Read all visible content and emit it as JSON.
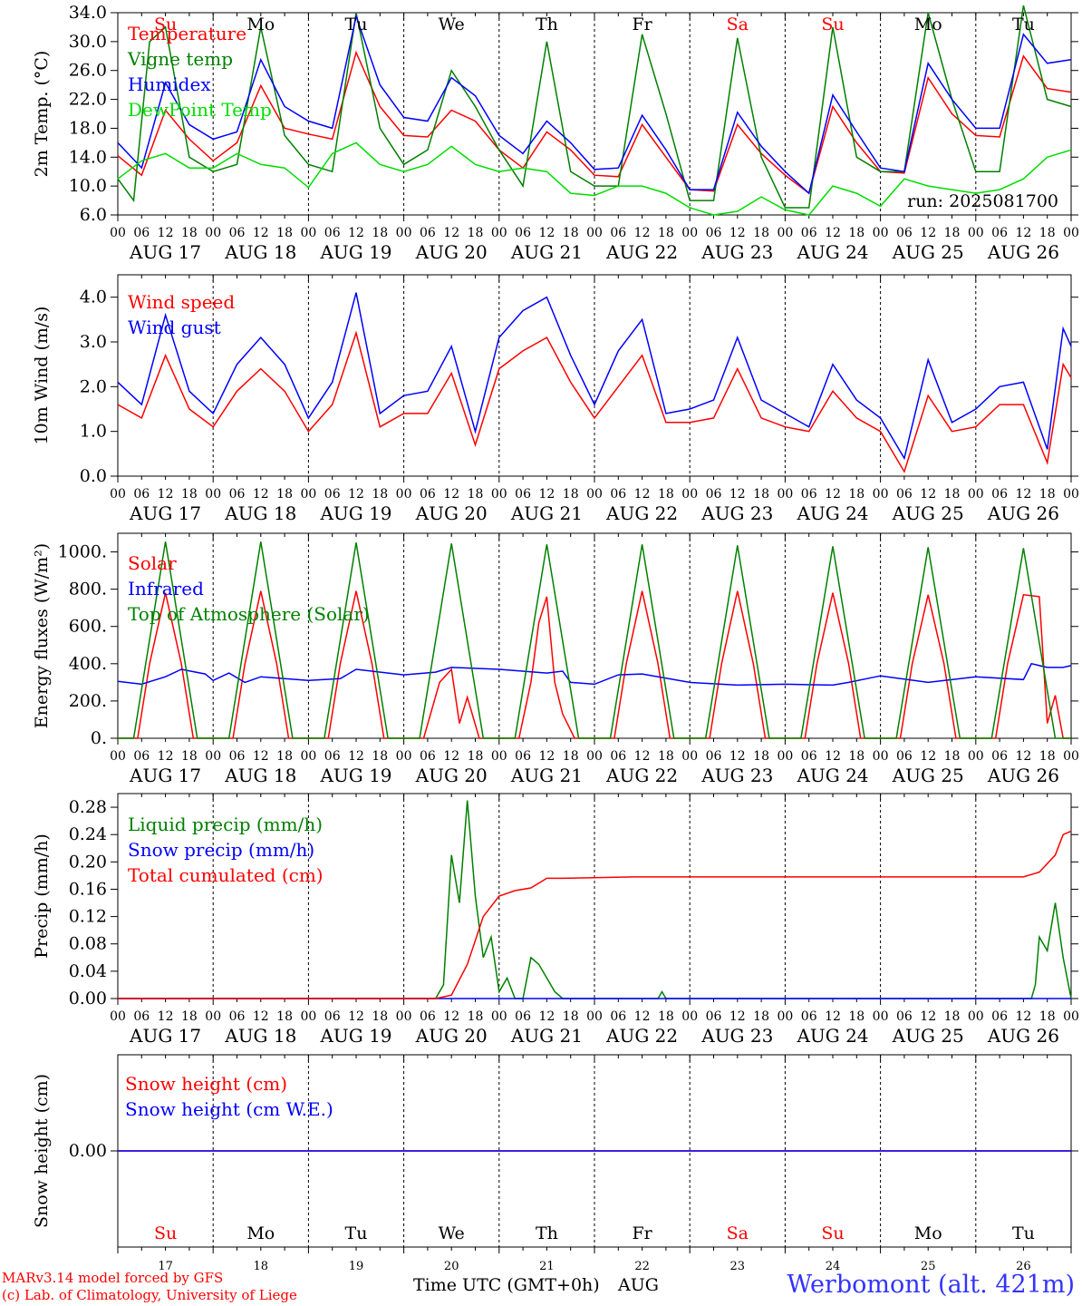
{
  "page": {
    "run_label": "run: 2025081700",
    "time_axis_label": "Time UTC (GMT+0h)",
    "month_label": "AUG",
    "site": "Werbomont (alt. 421m)",
    "credit_line1": "MARv3.14 model forced by GFS",
    "credit_line2": "(c) Lab. of Climatology, University of Liege"
  },
  "days": {
    "weekday_labels": [
      "Su",
      "Mo",
      "Tu",
      "We",
      "Th",
      "Fr",
      "Sa",
      "Su",
      "Mo",
      "Tu"
    ],
    "weekend_flags": [
      true,
      false,
      false,
      false,
      false,
      false,
      true,
      true,
      false,
      false
    ],
    "date_labels": [
      "AUG 17",
      "AUG 18",
      "AUG 19",
      "AUG 20",
      "AUG 21",
      "AUG 22",
      "AUG 23",
      "AUG 24",
      "AUG 25",
      "AUG 26"
    ],
    "day_numbers": [
      "17",
      "18",
      "19",
      "20",
      "21",
      "22",
      "23",
      "24",
      "25",
      "26"
    ],
    "hour_ticks": [
      "00",
      "06",
      "12",
      "18"
    ],
    "end_hour": "00"
  },
  "colors": {
    "red": "#ff0000",
    "green": "#008000",
    "blue": "#0000ff",
    "lightgreen": "#00dd00",
    "weekend": "#ff0000",
    "text": "#000000"
  },
  "chart_data": [
    {
      "type": "line",
      "ylabel": "2m Temp. (°C)",
      "ylim": [
        6,
        34
      ],
      "yticks": [
        "6.0",
        "10.0",
        "14.0",
        "18.0",
        "22.0",
        "26.0",
        "30.0",
        "34.0"
      ],
      "show_weekdays": true,
      "x_unit": "hours since Aug 17 00 UTC",
      "series": [
        {
          "name": "Temperature",
          "color": "red",
          "x": [
            0,
            6,
            12,
            18,
            24,
            30,
            36,
            42,
            48,
            54,
            60,
            66,
            72,
            78,
            84,
            90,
            96,
            102,
            108,
            114,
            120,
            126,
            132,
            138,
            144,
            150,
            156,
            162,
            168,
            174,
            180,
            186,
            192,
            198,
            204,
            210,
            216,
            222,
            228,
            234,
            240
          ],
          "y": [
            14.2,
            11.5,
            20.5,
            16.5,
            13.5,
            16,
            23.9,
            18,
            17.2,
            16.5,
            28.5,
            21,
            17,
            16.8,
            20.5,
            19,
            15,
            12.5,
            17.5,
            15,
            11.5,
            11.3,
            18.5,
            14,
            9.5,
            9.3,
            18.5,
            14.5,
            11.5,
            9,
            21,
            16,
            12,
            11.8,
            25,
            20,
            17,
            16.8,
            28,
            23.5,
            23
          ]
        },
        {
          "name": "Vigne temp",
          "color": "green",
          "x": [
            0,
            4,
            8,
            12,
            18,
            24,
            30,
            36,
            42,
            48,
            54,
            60,
            66,
            72,
            78,
            84,
            90,
            96,
            102,
            108,
            114,
            120,
            126,
            132,
            138,
            144,
            150,
            156,
            162,
            168,
            174,
            180,
            186,
            192,
            198,
            204,
            210,
            216,
            222,
            228,
            234,
            240
          ],
          "y": [
            11,
            8,
            30,
            32,
            14,
            12,
            13,
            32,
            17,
            13,
            12,
            34,
            18,
            13,
            15,
            26,
            21,
            15,
            10,
            30,
            12,
            10,
            10,
            31,
            20,
            8,
            8,
            30.5,
            14,
            7,
            7,
            32,
            14,
            12,
            12,
            34,
            22,
            12,
            12,
            35,
            22,
            21
          ]
        },
        {
          "name": "Humidex",
          "color": "blue",
          "x": [
            0,
            6,
            12,
            18,
            24,
            30,
            36,
            42,
            48,
            54,
            60,
            66,
            72,
            78,
            84,
            90,
            96,
            102,
            108,
            114,
            120,
            126,
            132,
            138,
            144,
            150,
            156,
            162,
            168,
            174,
            180,
            186,
            192,
            198,
            204,
            210,
            216,
            222,
            228,
            234,
            240
          ],
          "y": [
            16,
            12.5,
            24.3,
            18.5,
            16.5,
            17.5,
            27.5,
            21,
            19,
            18,
            33.5,
            24,
            19.5,
            19,
            25,
            22.5,
            17,
            14.5,
            19,
            16,
            12.3,
            12.5,
            19.8,
            15,
            9.5,
            9.5,
            20.2,
            15.5,
            12,
            9,
            22.6,
            17.5,
            12.5,
            12,
            27,
            22,
            18,
            18,
            31,
            27,
            27.5
          ]
        },
        {
          "name": "DewPoint Temp",
          "color": "lightgreen",
          "x": [
            0,
            6,
            12,
            18,
            24,
            30,
            36,
            42,
            48,
            54,
            60,
            66,
            72,
            78,
            84,
            90,
            96,
            102,
            108,
            114,
            120,
            126,
            132,
            138,
            144,
            150,
            156,
            162,
            168,
            174,
            180,
            186,
            192,
            198,
            204,
            210,
            216,
            222,
            228,
            234,
            240
          ],
          "y": [
            11,
            13.5,
            14.5,
            12.5,
            12.5,
            14.5,
            13,
            12.5,
            9.8,
            14.5,
            16,
            13,
            12,
            13,
            15.5,
            13,
            12,
            12.5,
            12,
            9,
            8.7,
            10,
            10,
            9,
            7,
            6,
            6.5,
            8.5,
            6.7,
            6,
            10,
            9,
            7.2,
            11,
            10,
            9.5,
            9,
            9.5,
            11,
            14,
            15
          ]
        }
      ]
    },
    {
      "type": "line",
      "ylabel": "10m Wind (m/s)",
      "ylim": [
        0,
        4.5
      ],
      "yticks": [
        "0.0",
        "1.0",
        "2.0",
        "3.0",
        "4.0"
      ],
      "show_weekdays": false,
      "x_unit": "hours since Aug 17 00 UTC",
      "series": [
        {
          "name": "Wind speed",
          "color": "red",
          "x": [
            0,
            6,
            12,
            18,
            24,
            30,
            36,
            42,
            48,
            54,
            60,
            66,
            72,
            78,
            84,
            90,
            96,
            102,
            108,
            114,
            120,
            126,
            132,
            138,
            144,
            150,
            156,
            162,
            168,
            174,
            180,
            186,
            192,
            198,
            204,
            210,
            216,
            222,
            228,
            234,
            238,
            240
          ],
          "y": [
            1.6,
            1.3,
            2.7,
            1.5,
            1.1,
            1.9,
            2.4,
            1.9,
            1,
            1.6,
            3.2,
            1.1,
            1.4,
            1.4,
            2.3,
            0.7,
            2.4,
            2.8,
            3.1,
            2.1,
            1.3,
            2,
            2.7,
            1.2,
            1.2,
            1.3,
            2.4,
            1.3,
            1.1,
            1,
            1.9,
            1.3,
            1,
            0.1,
            1.8,
            1,
            1.1,
            1.6,
            1.6,
            0.3,
            2.5,
            2.2
          ]
        },
        {
          "name": "Wind gust",
          "color": "blue",
          "x": [
            0,
            6,
            12,
            18,
            24,
            30,
            36,
            42,
            48,
            54,
            60,
            66,
            72,
            78,
            84,
            90,
            96,
            102,
            108,
            114,
            120,
            126,
            132,
            138,
            144,
            150,
            156,
            162,
            168,
            174,
            180,
            186,
            192,
            198,
            204,
            210,
            216,
            222,
            228,
            234,
            238,
            240
          ],
          "y": [
            2.1,
            1.6,
            3.6,
            1.9,
            1.4,
            2.5,
            3.1,
            2.5,
            1.3,
            2.1,
            4.1,
            1.4,
            1.8,
            1.9,
            2.9,
            1,
            3.1,
            3.7,
            4,
            2.7,
            1.6,
            2.8,
            3.5,
            1.4,
            1.5,
            1.7,
            3.1,
            1.7,
            1.4,
            1.1,
            2.5,
            1.7,
            1.3,
            0.4,
            2.6,
            1.2,
            1.5,
            2,
            2.1,
            0.6,
            3.3,
            2.9
          ]
        }
      ]
    },
    {
      "type": "line",
      "ylabel": "Energy fluxes (W/m²)",
      "ylim": [
        0,
        1100
      ],
      "yticks": [
        "0.",
        "200.",
        "400.",
        "600.",
        "800.",
        "1000."
      ],
      "show_weekdays": false,
      "x_unit": "hours since Aug 17 00 UTC",
      "series": [
        {
          "name": "Solar",
          "color": "red",
          "x": [
            0,
            5,
            8,
            12,
            16,
            19,
            24,
            29,
            32,
            36,
            40,
            43,
            48,
            53,
            56,
            60,
            64,
            67,
            72,
            77,
            81,
            84,
            86,
            88,
            91,
            96,
            101,
            104,
            106,
            108,
            110,
            112,
            115,
            120,
            125,
            128,
            132,
            136,
            139,
            144,
            149,
            152,
            156,
            160,
            163,
            168,
            173,
            176,
            180,
            184,
            187,
            192,
            197,
            200,
            204,
            208,
            211,
            216,
            221,
            224,
            228,
            232,
            234,
            236,
            238,
            240
          ],
          "y": [
            0,
            0,
            400,
            780,
            400,
            0,
            0,
            0,
            400,
            790,
            400,
            0,
            0,
            0,
            400,
            790,
            400,
            0,
            0,
            0,
            300,
            370,
            80,
            220,
            0,
            0,
            0,
            300,
            620,
            760,
            300,
            130,
            0,
            0,
            0,
            400,
            790,
            400,
            0,
            0,
            0,
            400,
            790,
            400,
            0,
            0,
            0,
            400,
            780,
            400,
            0,
            0,
            0,
            400,
            770,
            400,
            0,
            0,
            0,
            400,
            770,
            760,
            80,
            230,
            0,
            0
          ]
        },
        {
          "name": "Infrared",
          "color": "blue",
          "x": [
            0,
            6,
            12,
            16,
            22,
            24,
            28,
            32,
            36,
            48,
            56,
            60,
            72,
            80,
            84,
            96,
            108,
            112,
            114,
            120,
            126,
            132,
            144,
            156,
            168,
            180,
            184,
            192,
            204,
            216,
            228,
            230,
            234,
            238,
            240
          ],
          "y": [
            305,
            290,
            330,
            370,
            345,
            310,
            350,
            300,
            330,
            310,
            320,
            370,
            340,
            355,
            380,
            370,
            350,
            360,
            300,
            290,
            340,
            345,
            300,
            285,
            290,
            285,
            300,
            335,
            300,
            330,
            315,
            400,
            380,
            380,
            390
          ]
        },
        {
          "name": "Top of Atmosphere (Solar)",
          "color": "green",
          "x": [
            0,
            4,
            12,
            20,
            24,
            28,
            36,
            44,
            48,
            52,
            60,
            68,
            72,
            76,
            84,
            92,
            96,
            100,
            108,
            116,
            120,
            124,
            132,
            140,
            144,
            148,
            156,
            164,
            168,
            172,
            180,
            188,
            192,
            196,
            204,
            212,
            216,
            220,
            228,
            236,
            240
          ],
          "y": [
            0,
            0,
            1055,
            0,
            0,
            0,
            1055,
            0,
            0,
            0,
            1050,
            0,
            0,
            0,
            1045,
            0,
            0,
            0,
            1040,
            0,
            0,
            0,
            1040,
            0,
            0,
            0,
            1035,
            0,
            0,
            0,
            1030,
            0,
            0,
            0,
            1025,
            0,
            0,
            0,
            1020,
            0,
            0
          ]
        }
      ]
    },
    {
      "type": "line",
      "ylabel": "Precip (mm/h)",
      "ylim": [
        0,
        0.3
      ],
      "yticks": [
        "0.00",
        "0.04",
        "0.08",
        "0.12",
        "0.16",
        "0.20",
        "0.24",
        "0.28"
      ],
      "show_weekdays": false,
      "x_unit": "hours since Aug 17 00 UTC",
      "series": [
        {
          "name": "Liquid precip (mm/h)",
          "color": "green",
          "x": [
            0,
            80,
            82,
            84,
            86,
            88,
            90,
            92,
            94,
            96,
            98,
            100,
            102,
            104,
            106,
            108,
            110,
            112,
            114,
            116,
            118,
            120,
            136,
            137,
            138,
            230,
            231,
            232,
            234,
            236,
            238,
            240
          ],
          "y": [
            0,
            0,
            0.02,
            0.21,
            0.14,
            0.29,
            0.15,
            0.06,
            0.09,
            0.01,
            0.03,
            0,
            0,
            0.06,
            0.05,
            0.03,
            0.01,
            0,
            0,
            0,
            0,
            0,
            0,
            0.01,
            0,
            0,
            0.02,
            0.09,
            0.07,
            0.14,
            0.06,
            0
          ]
        },
        {
          "name": "Snow precip (mm/h)",
          "color": "blue",
          "x": [
            0,
            240
          ],
          "y": [
            0,
            0
          ]
        },
        {
          "name": "Total cumulated (cm)",
          "color": "red",
          "x": [
            0,
            80,
            84,
            88,
            92,
            96,
            100,
            104,
            108,
            112,
            130,
            150,
            190,
            228,
            232,
            236,
            238,
            240
          ],
          "y": [
            0,
            0,
            0.005,
            0.05,
            0.12,
            0.15,
            0.158,
            0.162,
            0.176,
            0.176,
            0.178,
            0.178,
            0.178,
            0.178,
            0.185,
            0.21,
            0.24,
            0.245
          ]
        }
      ]
    },
    {
      "type": "line",
      "ylabel": "Snow height (cm)",
      "ylim": [
        -1,
        1
      ],
      "yticks": [
        "0.00"
      ],
      "show_weekdays": true,
      "x_unit": "hours since Aug 17 00 UTC",
      "series": [
        {
          "name": "Snow height (cm)",
          "color": "red",
          "x": [
            0,
            240
          ],
          "y": [
            0,
            0
          ]
        },
        {
          "name": "Snow height (cm W.E.)",
          "color": "blue",
          "x": [
            0,
            240
          ],
          "y": [
            0,
            0
          ]
        }
      ]
    }
  ]
}
